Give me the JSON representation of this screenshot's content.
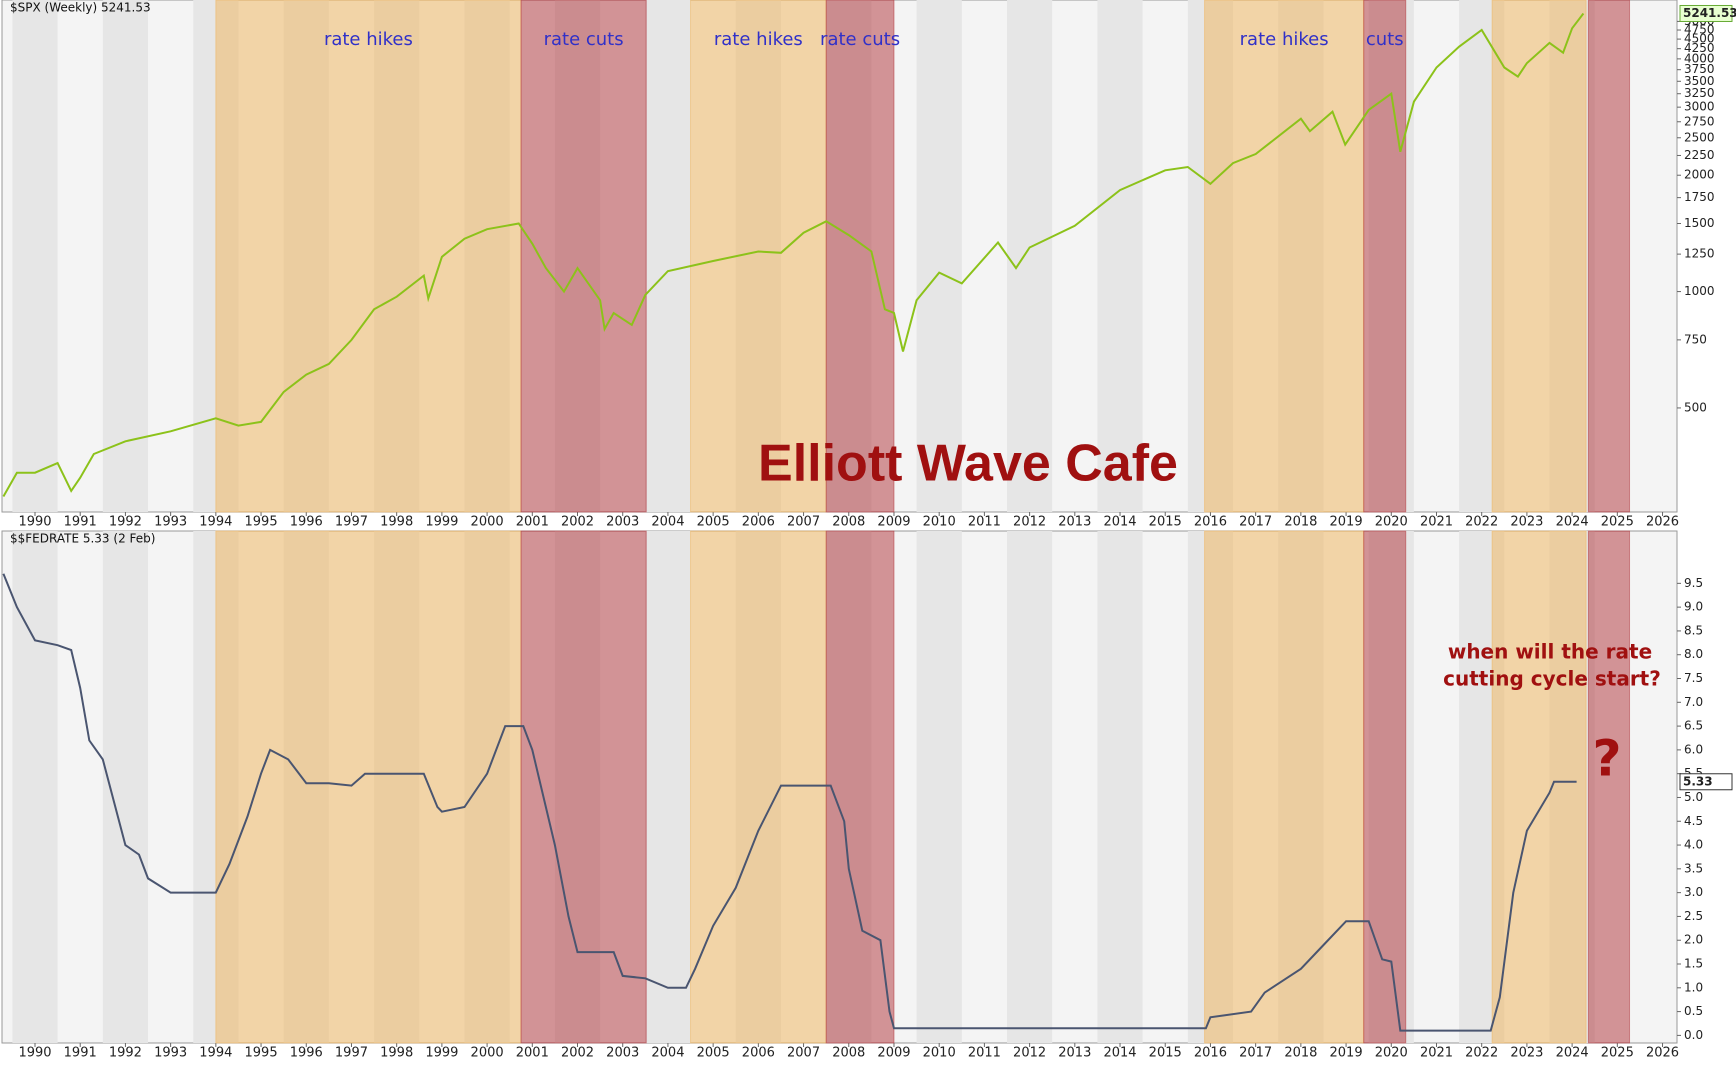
{
  "chart_data": [
    {
      "type": "line",
      "title": "$SPX (Weekly) 5241.53",
      "log_scale": true,
      "last_value": 5241.53,
      "x": [
        1989.3,
        1989.6,
        1990.0,
        1990.5,
        1990.8,
        1991.0,
        1991.3,
        1992.0,
        1993.0,
        1994.0,
        1994.5,
        1995.0,
        1995.5,
        1996.0,
        1996.5,
        1997.0,
        1997.5,
        1998.0,
        1998.6,
        1998.7,
        1999.0,
        1999.5,
        2000.0,
        2000.7,
        2001.0,
        2001.3,
        2001.7,
        2002.0,
        2002.5,
        2002.6,
        2002.8,
        2003.2,
        2003.5,
        2004.0,
        2005.0,
        2006.0,
        2006.5,
        2007.0,
        2007.5,
        2008.0,
        2008.5,
        2008.8,
        2009.0,
        2009.2,
        2009.5,
        2010.0,
        2010.5,
        2011.3,
        2011.7,
        2012.0,
        2013.0,
        2014.0,
        2015.0,
        2015.5,
        2016.0,
        2016.5,
        2017.0,
        2018.0,
        2018.2,
        2018.7,
        2018.98,
        2019.5,
        2020.0,
        2020.2,
        2020.5,
        2021.0,
        2021.5,
        2022.0,
        2022.5,
        2022.8,
        2023.0,
        2023.5,
        2023.8,
        2024.0,
        2024.25
      ],
      "series": [
        {
          "name": "$SPX",
          "color": "#8cc21a",
          "values": [
            295,
            340,
            340,
            360,
            305,
            330,
            380,
            410,
            435,
            470,
            450,
            460,
            550,
            610,
            650,
            750,
            900,
            970,
            1100,
            960,
            1230,
            1370,
            1450,
            1500,
            1330,
            1150,
            1000,
            1150,
            950,
            800,
            880,
            820,
            980,
            1130,
            1200,
            1270,
            1260,
            1420,
            1520,
            1400,
            1270,
            900,
            880,
            700,
            950,
            1120,
            1050,
            1340,
            1150,
            1300,
            1480,
            1830,
            2060,
            2100,
            1900,
            2150,
            2270,
            2800,
            2600,
            2920,
            2400,
            2950,
            3250,
            2300,
            3100,
            3800,
            4300,
            4750,
            3800,
            3600,
            3900,
            4400,
            4150,
            4800,
            5241.53
          ]
        }
      ],
      "xlim": [
        1989.27,
        2026.32
      ],
      "xticks": [
        1990,
        1991,
        1992,
        1993,
        1994,
        1995,
        1996,
        1997,
        1998,
        1999,
        2000,
        2001,
        2002,
        2003,
        2004,
        2005,
        2006,
        2007,
        2008,
        2009,
        2010,
        2011,
        2012,
        2013,
        2014,
        2015,
        2016,
        2017,
        2018,
        2019,
        2020,
        2021,
        2022,
        2023,
        2024,
        2025,
        2026
      ],
      "ylim": [
        269,
        5680
      ],
      "yticks": [
        500,
        750,
        1000,
        1250,
        1500,
        1750,
        2000,
        2250,
        2500,
        2750,
        3000,
        3250,
        3500,
        3750,
        4000,
        4250,
        4500,
        4750,
        5000
      ]
    },
    {
      "type": "line",
      "title": "$$FEDRATE 5.33 (2 Feb)",
      "last_value": 5.33,
      "x": [
        1989.3,
        1989.6,
        1990.0,
        1990.5,
        1990.8,
        1991.0,
        1991.2,
        1991.5,
        1992.0,
        1992.3,
        1992.5,
        1993.0,
        1994.0,
        1994.3,
        1994.7,
        1995.0,
        1995.2,
        1995.6,
        1996.0,
        1996.5,
        1997.0,
        1997.3,
        1998.0,
        1998.6,
        1998.9,
        1999.0,
        1999.5,
        2000.0,
        2000.4,
        2000.8,
        2001.0,
        2001.5,
        2001.8,
        2002.0,
        2002.8,
        2003.0,
        2003.5,
        2004.0,
        2004.4,
        2004.6,
        2005.0,
        2005.5,
        2006.0,
        2006.5,
        2007.6,
        2007.9,
        2008.0,
        2008.3,
        2008.7,
        2008.9,
        2009.0,
        2010.0,
        2015.9,
        2016.0,
        2016.9,
        2017.2,
        2017.6,
        2018.0,
        2018.5,
        2019.0,
        2019.5,
        2019.8,
        2020.0,
        2020.2,
        2022.2,
        2022.4,
        2022.7,
        2023.0,
        2023.5,
        2023.6,
        2024.1
      ],
      "series": [
        {
          "name": "$$FEDRATE",
          "color": "#4a5570",
          "values": [
            9.7,
            9.0,
            8.3,
            8.2,
            8.1,
            7.3,
            6.2,
            5.8,
            4.0,
            3.8,
            3.3,
            3.0,
            3.0,
            3.6,
            4.6,
            5.5,
            6.0,
            5.8,
            5.3,
            5.3,
            5.25,
            5.5,
            5.5,
            5.5,
            4.8,
            4.7,
            4.8,
            5.5,
            6.5,
            6.5,
            6.0,
            4.0,
            2.5,
            1.75,
            1.75,
            1.25,
            1.2,
            1.0,
            1.0,
            1.4,
            2.3,
            3.1,
            4.3,
            5.25,
            5.25,
            4.5,
            3.5,
            2.2,
            2.0,
            0.5,
            0.15,
            0.15,
            0.15,
            0.38,
            0.5,
            0.9,
            1.15,
            1.4,
            1.9,
            2.4,
            2.4,
            1.6,
            1.55,
            0.1,
            0.1,
            0.8,
            3.0,
            4.3,
            5.1,
            5.33,
            5.33
          ]
        }
      ],
      "xlim": [
        1989.27,
        2026.32
      ],
      "xticks": [
        1990,
        1991,
        1992,
        1993,
        1994,
        1995,
        1996,
        1997,
        1998,
        1999,
        2000,
        2001,
        2002,
        2003,
        2004,
        2005,
        2006,
        2007,
        2008,
        2009,
        2010,
        2011,
        2012,
        2013,
        2014,
        2015,
        2016,
        2017,
        2018,
        2019,
        2020,
        2021,
        2022,
        2023,
        2024,
        2025,
        2026
      ],
      "ylim": [
        -0.16,
        10.6
      ],
      "yticks": [
        {
          "value": 0,
          "label": "0.0"
        },
        0.5,
        {
          "value": 1,
          "label": "1.0"
        },
        1.5,
        {
          "value": 2,
          "label": "2.0"
        },
        2.5,
        {
          "value": 3,
          "label": "3.0"
        },
        3.5,
        {
          "value": 4,
          "label": "4.0"
        },
        4.5,
        {
          "value": 5,
          "label": "5.0"
        },
        5.5,
        {
          "value": 6,
          "label": "6.0"
        },
        6.5,
        {
          "value": 7,
          "label": "7.0"
        },
        7.5,
        {
          "value": 8,
          "label": "8.0"
        },
        8.5,
        {
          "value": 9,
          "label": "9.0"
        },
        9.5
      ],
      "annotations": [
        "when will the rate",
        "cutting cycle start?",
        "?"
      ]
    }
  ],
  "regions": [
    {
      "start": 1994.0,
      "end": 2000.75,
      "color": "rgba(240,180,90,0.5)",
      "label": "rate hikes"
    },
    {
      "start": 2000.75,
      "end": 2003.52,
      "color": "rgba(175,50,55,0.5)",
      "label": "rate cuts"
    },
    {
      "start": 2004.5,
      "end": 2007.5,
      "color": "rgba(240,180,90,0.5)",
      "label": "rate hikes"
    },
    {
      "start": 2007.5,
      "end": 2009.0,
      "color": "rgba(175,50,55,0.5)",
      "label": "rate cuts"
    },
    {
      "start": 2015.87,
      "end": 2019.39,
      "color": "rgba(240,180,90,0.5)",
      "label": "rate hikes"
    },
    {
      "start": 2019.39,
      "end": 2020.32,
      "color": "rgba(175,50,55,0.5)",
      "label": "cuts"
    },
    {
      "start": 2022.23,
      "end": 2024.31,
      "color": "rgba(240,180,90,0.5)"
    },
    {
      "start": 2024.36,
      "end": 2025.27,
      "color": "rgba(175,50,55,0.5)"
    }
  ],
  "watermark": "Elliott Wave Cafe"
}
